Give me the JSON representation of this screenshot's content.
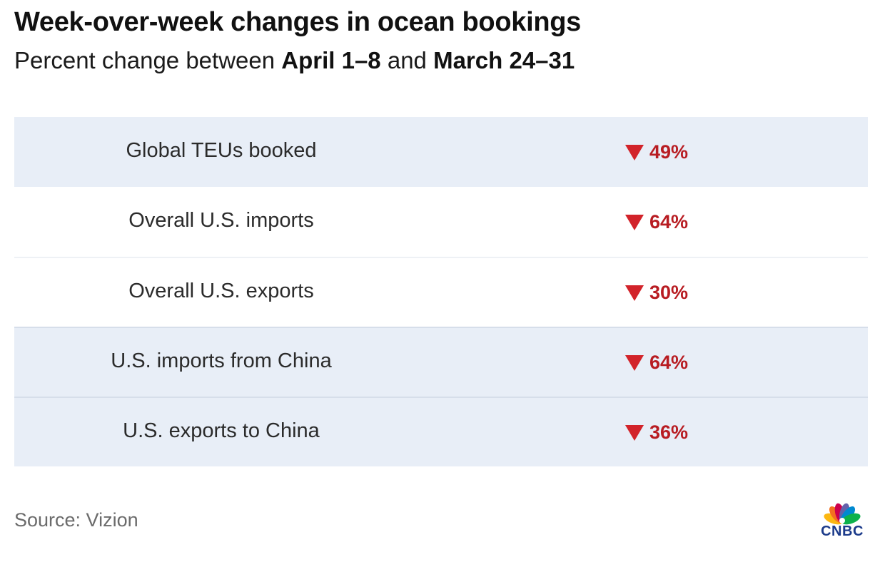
{
  "chart_data": {
    "type": "table",
    "title": "Week-over-week changes in ocean bookings",
    "subtitle_parts": [
      "Percent change between ",
      "April 1–8",
      " and ",
      "March 24–31"
    ],
    "rows": [
      {
        "label": "Global TEUs booked",
        "value": "49%",
        "direction": "down",
        "change": -49
      },
      {
        "label": "Overall U.S. imports",
        "value": "64%",
        "direction": "down",
        "change": -64
      },
      {
        "label": "Overall U.S. exports",
        "value": "30%",
        "direction": "down",
        "change": -30
      },
      {
        "label": "U.S. imports from China",
        "value": "64%",
        "direction": "down",
        "change": -64
      },
      {
        "label": "U.S. exports to China",
        "value": "36%",
        "direction": "down",
        "change": -36
      }
    ],
    "source": "Source: Vizion"
  },
  "logo": {
    "text": "CNBC",
    "peacock_colors": [
      "#fcb711",
      "#f37021",
      "#cc004c",
      "#6460aa",
      "#0089d0",
      "#0db14b"
    ]
  },
  "colors": {
    "down_arrow": "#d2232a",
    "value_text": "#b81c22",
    "row_shade": "#e8eef7"
  }
}
